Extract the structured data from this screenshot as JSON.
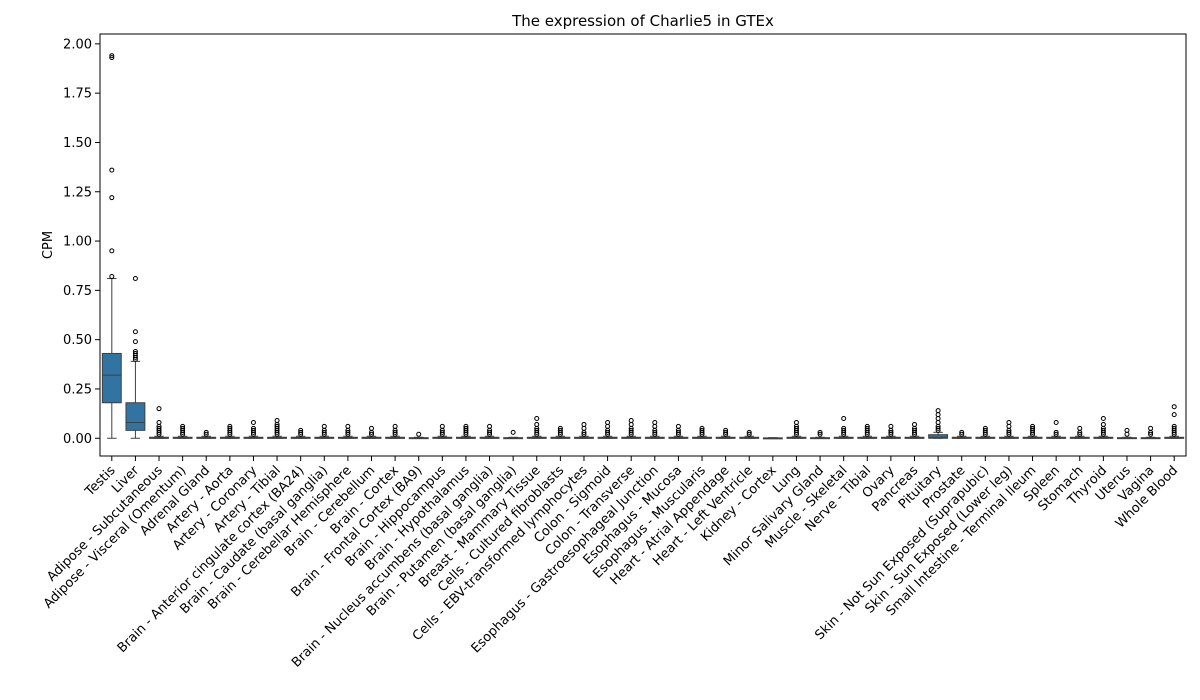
{
  "chart_data": {
    "type": "box",
    "title": "The expression of Charlie5 in GTEx",
    "xlabel": "",
    "ylabel": "CPM",
    "ylim": [
      -0.09,
      2.05
    ],
    "yticks": [
      0.0,
      0.25,
      0.5,
      0.75,
      1.0,
      1.25,
      1.5,
      1.75,
      2.0
    ],
    "ytick_labels": [
      "0.00",
      "0.25",
      "0.50",
      "0.75",
      "1.00",
      "1.25",
      "1.50",
      "1.75",
      "2.00"
    ],
    "grid": false,
    "legend": "none",
    "box_color": "#3274a1",
    "categories": [
      "Testis",
      "Liver",
      "Adipose - Subcutaneous",
      "Adipose - Visceral (Omentum)",
      "Adrenal Gland",
      "Artery - Aorta",
      "Artery - Coronary",
      "Artery - Tibial",
      "Brain - Anterior cingulate cortex (BA24)",
      "Brain - Caudate (basal ganglia)",
      "Brain - Cerebellar Hemisphere",
      "Brain - Cerebellum",
      "Brain - Cortex",
      "Brain - Frontal Cortex (BA9)",
      "Brain - Hippocampus",
      "Brain - Hypothalamus",
      "Brain - Nucleus accumbens (basal ganglia)",
      "Brain - Putamen (basal ganglia)",
      "Breast - Mammary Tissue",
      "Cells - Cultured fibroblasts",
      "Cells - EBV-transformed lymphocytes",
      "Colon - Sigmoid",
      "Colon - Transverse",
      "Esophagus - Gastroesophageal Junction",
      "Esophagus - Mucosa",
      "Esophagus - Muscularis",
      "Heart - Atrial Appendage",
      "Heart - Left Ventricle",
      "Kidney - Cortex",
      "Lung",
      "Minor Salivary Gland",
      "Muscle - Skeletal",
      "Nerve - Tibial",
      "Ovary",
      "Pancreas",
      "Pituitary",
      "Prostate",
      "Skin - Not Sun Exposed (Suprapubic)",
      "Skin - Sun Exposed (Lower leg)",
      "Small Intestine - Terminal Ileum",
      "Spleen",
      "Stomach",
      "Thyroid",
      "Uterus",
      "Vagina",
      "Whole Blood"
    ],
    "boxes": [
      {
        "q1": 0.18,
        "median": 0.32,
        "q3": 0.43,
        "whisker_low": 0.0,
        "whisker_high": 0.81,
        "outliers": [
          0.82,
          0.95,
          1.22,
          1.36,
          1.93,
          1.94
        ]
      },
      {
        "q1": 0.04,
        "median": 0.08,
        "q3": 0.18,
        "whisker_low": 0.0,
        "whisker_high": 0.39,
        "outliers": [
          0.4,
          0.41,
          0.42,
          0.43,
          0.44,
          0.49,
          0.54,
          0.81
        ]
      },
      {
        "q1": 0.0,
        "median": 0.0,
        "q3": 0.005,
        "whisker_low": 0.0,
        "whisker_high": 0.01,
        "outliers": [
          0.02,
          0.03,
          0.04,
          0.05,
          0.06,
          0.08,
          0.15
        ]
      },
      {
        "q1": 0.0,
        "median": 0.0,
        "q3": 0.005,
        "whisker_low": 0.0,
        "whisker_high": 0.01,
        "outliers": [
          0.02,
          0.03,
          0.04,
          0.05,
          0.06
        ]
      },
      {
        "q1": 0.0,
        "median": 0.0,
        "q3": 0.005,
        "whisker_low": 0.0,
        "whisker_high": 0.01,
        "outliers": [
          0.02,
          0.03
        ]
      },
      {
        "q1": 0.0,
        "median": 0.0,
        "q3": 0.005,
        "whisker_low": 0.0,
        "whisker_high": 0.01,
        "outliers": [
          0.02,
          0.03,
          0.04,
          0.05,
          0.06
        ]
      },
      {
        "q1": 0.0,
        "median": 0.0,
        "q3": 0.005,
        "whisker_low": 0.0,
        "whisker_high": 0.01,
        "outliers": [
          0.02,
          0.03,
          0.04,
          0.05,
          0.08
        ]
      },
      {
        "q1": 0.0,
        "median": 0.0,
        "q3": 0.005,
        "whisker_low": 0.0,
        "whisker_high": 0.01,
        "outliers": [
          0.02,
          0.03,
          0.04,
          0.05,
          0.06,
          0.07,
          0.09
        ]
      },
      {
        "q1": 0.0,
        "median": 0.0,
        "q3": 0.005,
        "whisker_low": 0.0,
        "whisker_high": 0.01,
        "outliers": [
          0.02,
          0.03,
          0.04
        ]
      },
      {
        "q1": 0.0,
        "median": 0.0,
        "q3": 0.005,
        "whisker_low": 0.0,
        "whisker_high": 0.01,
        "outliers": [
          0.02,
          0.03,
          0.04,
          0.06
        ]
      },
      {
        "q1": 0.0,
        "median": 0.0,
        "q3": 0.005,
        "whisker_low": 0.0,
        "whisker_high": 0.01,
        "outliers": [
          0.02,
          0.03,
          0.04,
          0.06
        ]
      },
      {
        "q1": 0.0,
        "median": 0.0,
        "q3": 0.005,
        "whisker_low": 0.0,
        "whisker_high": 0.01,
        "outliers": [
          0.02,
          0.03,
          0.05
        ]
      },
      {
        "q1": 0.0,
        "median": 0.0,
        "q3": 0.005,
        "whisker_low": 0.0,
        "whisker_high": 0.01,
        "outliers": [
          0.02,
          0.03,
          0.04,
          0.06
        ]
      },
      {
        "q1": 0.0,
        "median": 0.0,
        "q3": 0.003,
        "whisker_low": 0.0,
        "whisker_high": 0.005,
        "outliers": [
          0.02
        ]
      },
      {
        "q1": 0.0,
        "median": 0.0,
        "q3": 0.005,
        "whisker_low": 0.0,
        "whisker_high": 0.01,
        "outliers": [
          0.02,
          0.03,
          0.04,
          0.06
        ]
      },
      {
        "q1": 0.0,
        "median": 0.0,
        "q3": 0.005,
        "whisker_low": 0.0,
        "whisker_high": 0.01,
        "outliers": [
          0.02,
          0.03,
          0.04,
          0.05,
          0.06
        ]
      },
      {
        "q1": 0.0,
        "median": 0.0,
        "q3": 0.005,
        "whisker_low": 0.0,
        "whisker_high": 0.01,
        "outliers": [
          0.02,
          0.03,
          0.04,
          0.06
        ]
      },
      {
        "q1": 0.0,
        "median": 0.0,
        "q3": 0.003,
        "whisker_low": 0.0,
        "whisker_high": 0.005,
        "outliers": [
          0.03
        ]
      },
      {
        "q1": 0.0,
        "median": 0.0,
        "q3": 0.005,
        "whisker_low": 0.0,
        "whisker_high": 0.01,
        "outliers": [
          0.02,
          0.03,
          0.04,
          0.05,
          0.07,
          0.1
        ]
      },
      {
        "q1": 0.0,
        "median": 0.0,
        "q3": 0.005,
        "whisker_low": 0.0,
        "whisker_high": 0.01,
        "outliers": [
          0.02,
          0.03,
          0.04,
          0.05
        ]
      },
      {
        "q1": 0.0,
        "median": 0.0,
        "q3": 0.005,
        "whisker_low": 0.0,
        "whisker_high": 0.01,
        "outliers": [
          0.02,
          0.03,
          0.05,
          0.07
        ]
      },
      {
        "q1": 0.0,
        "median": 0.0,
        "q3": 0.005,
        "whisker_low": 0.0,
        "whisker_high": 0.01,
        "outliers": [
          0.02,
          0.03,
          0.04,
          0.06,
          0.08
        ]
      },
      {
        "q1": 0.0,
        "median": 0.0,
        "q3": 0.005,
        "whisker_low": 0.0,
        "whisker_high": 0.01,
        "outliers": [
          0.02,
          0.03,
          0.04,
          0.05,
          0.07,
          0.09
        ]
      },
      {
        "q1": 0.0,
        "median": 0.0,
        "q3": 0.005,
        "whisker_low": 0.0,
        "whisker_high": 0.01,
        "outliers": [
          0.02,
          0.03,
          0.04,
          0.06,
          0.08
        ]
      },
      {
        "q1": 0.0,
        "median": 0.0,
        "q3": 0.005,
        "whisker_low": 0.0,
        "whisker_high": 0.01,
        "outliers": [
          0.02,
          0.03,
          0.04,
          0.06
        ]
      },
      {
        "q1": 0.0,
        "median": 0.0,
        "q3": 0.005,
        "whisker_low": 0.0,
        "whisker_high": 0.01,
        "outliers": [
          0.02,
          0.03,
          0.04,
          0.05
        ]
      },
      {
        "q1": 0.0,
        "median": 0.0,
        "q3": 0.005,
        "whisker_low": 0.0,
        "whisker_high": 0.01,
        "outliers": [
          0.02,
          0.03,
          0.04
        ]
      },
      {
        "q1": 0.0,
        "median": 0.0,
        "q3": 0.005,
        "whisker_low": 0.0,
        "whisker_high": 0.01,
        "outliers": [
          0.02,
          0.03
        ]
      },
      {
        "q1": 0.0,
        "median": 0.0,
        "q3": 0.002,
        "whisker_low": 0.0,
        "whisker_high": 0.003,
        "outliers": []
      },
      {
        "q1": 0.0,
        "median": 0.0,
        "q3": 0.005,
        "whisker_low": 0.0,
        "whisker_high": 0.01,
        "outliers": [
          0.02,
          0.03,
          0.04,
          0.05,
          0.06,
          0.08
        ]
      },
      {
        "q1": 0.0,
        "median": 0.0,
        "q3": 0.003,
        "whisker_low": 0.0,
        "whisker_high": 0.005,
        "outliers": [
          0.02,
          0.03
        ]
      },
      {
        "q1": 0.0,
        "median": 0.0,
        "q3": 0.005,
        "whisker_low": 0.0,
        "whisker_high": 0.01,
        "outliers": [
          0.02,
          0.03,
          0.04,
          0.05,
          0.1
        ]
      },
      {
        "q1": 0.0,
        "median": 0.0,
        "q3": 0.005,
        "whisker_low": 0.0,
        "whisker_high": 0.01,
        "outliers": [
          0.02,
          0.03,
          0.04,
          0.05,
          0.06
        ]
      },
      {
        "q1": 0.0,
        "median": 0.0,
        "q3": 0.005,
        "whisker_low": 0.0,
        "whisker_high": 0.01,
        "outliers": [
          0.02,
          0.03,
          0.04,
          0.06
        ]
      },
      {
        "q1": 0.0,
        "median": 0.0,
        "q3": 0.005,
        "whisker_low": 0.0,
        "whisker_high": 0.01,
        "outliers": [
          0.02,
          0.03,
          0.04,
          0.05,
          0.07
        ]
      },
      {
        "q1": 0.0,
        "median": 0.005,
        "q3": 0.018,
        "whisker_low": 0.0,
        "whisker_high": 0.03,
        "outliers": [
          0.04,
          0.05,
          0.06,
          0.08,
          0.1,
          0.12,
          0.14
        ]
      },
      {
        "q1": 0.0,
        "median": 0.0,
        "q3": 0.005,
        "whisker_low": 0.0,
        "whisker_high": 0.01,
        "outliers": [
          0.02,
          0.03
        ]
      },
      {
        "q1": 0.0,
        "median": 0.0,
        "q3": 0.005,
        "whisker_low": 0.0,
        "whisker_high": 0.01,
        "outliers": [
          0.02,
          0.03,
          0.04,
          0.05
        ]
      },
      {
        "q1": 0.0,
        "median": 0.0,
        "q3": 0.005,
        "whisker_low": 0.0,
        "whisker_high": 0.01,
        "outliers": [
          0.02,
          0.03,
          0.04,
          0.06,
          0.08
        ]
      },
      {
        "q1": 0.0,
        "median": 0.0,
        "q3": 0.005,
        "whisker_low": 0.0,
        "whisker_high": 0.01,
        "outliers": [
          0.02,
          0.03,
          0.04,
          0.05,
          0.06
        ]
      },
      {
        "q1": 0.0,
        "median": 0.0,
        "q3": 0.005,
        "whisker_low": 0.0,
        "whisker_high": 0.01,
        "outliers": [
          0.02,
          0.03,
          0.08
        ]
      },
      {
        "q1": 0.0,
        "median": 0.0,
        "q3": 0.005,
        "whisker_low": 0.0,
        "whisker_high": 0.01,
        "outliers": [
          0.02,
          0.03,
          0.05
        ]
      },
      {
        "q1": 0.0,
        "median": 0.0,
        "q3": 0.005,
        "whisker_low": 0.0,
        "whisker_high": 0.01,
        "outliers": [
          0.02,
          0.03,
          0.04,
          0.05,
          0.07,
          0.1
        ]
      },
      {
        "q1": 0.0,
        "median": 0.0,
        "q3": 0.003,
        "whisker_low": 0.0,
        "whisker_high": 0.005,
        "outliers": [
          0.02,
          0.04
        ]
      },
      {
        "q1": 0.0,
        "median": 0.0,
        "q3": 0.003,
        "whisker_low": 0.0,
        "whisker_high": 0.005,
        "outliers": [
          0.02,
          0.03,
          0.05
        ]
      },
      {
        "q1": 0.0,
        "median": 0.0,
        "q3": 0.005,
        "whisker_low": 0.0,
        "whisker_high": 0.01,
        "outliers": [
          0.02,
          0.03,
          0.04,
          0.05,
          0.06,
          0.12,
          0.16
        ]
      }
    ]
  }
}
